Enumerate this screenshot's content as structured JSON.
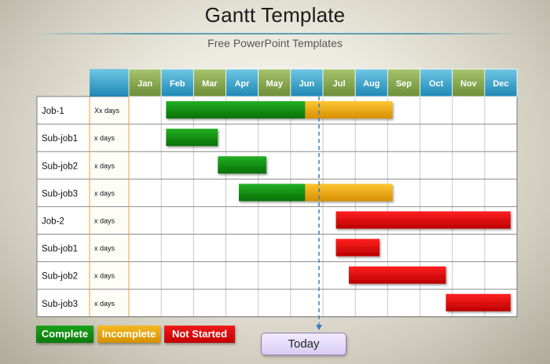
{
  "header": {
    "title": "Gantt Template",
    "subtitle": "Free PowerPoint Templates"
  },
  "legend": {
    "complete": "Complete",
    "incomplete": "Incomplete",
    "not_started": "Not Started"
  },
  "today_label": "Today",
  "colors": {
    "complete": "#0e8a0e",
    "incomplete": "#f0ac0a",
    "not_started": "#e00000",
    "month_green": "#7f9f4a",
    "month_blue": "#3aa0c4"
  },
  "chart_data": {
    "type": "gantt",
    "months": [
      "Jan",
      "Feb",
      "Mar",
      "Apr",
      "May",
      "Jun",
      "Jul",
      "Aug",
      "Sep",
      "Oct",
      "Nov",
      "Dec"
    ],
    "today": 6.0,
    "rows": [
      {
        "name": "Job-1",
        "duration": "Xx days",
        "bars": [
          {
            "start": 1.15,
            "end": 5.45,
            "status": "complete"
          },
          {
            "start": 5.45,
            "end": 8.15,
            "status": "incomplete"
          }
        ]
      },
      {
        "name": "Sub-job1",
        "duration": "x days",
        "bars": [
          {
            "start": 1.15,
            "end": 2.75,
            "status": "complete"
          }
        ]
      },
      {
        "name": "Sub-job2",
        "duration": "x days",
        "bars": [
          {
            "start": 2.75,
            "end": 4.25,
            "status": "complete"
          }
        ]
      },
      {
        "name": "Sub-job3",
        "duration": "x days",
        "bars": [
          {
            "start": 3.4,
            "end": 5.45,
            "status": "complete"
          },
          {
            "start": 5.45,
            "end": 8.15,
            "status": "incomplete"
          }
        ]
      },
      {
        "name": "Job-2",
        "duration": "x days",
        "bars": [
          {
            "start": 6.4,
            "end": 11.8,
            "status": "not_started"
          }
        ]
      },
      {
        "name": "Sub-job1",
        "duration": "x days",
        "bars": [
          {
            "start": 6.4,
            "end": 7.75,
            "status": "not_started"
          }
        ]
      },
      {
        "name": "Sub-job2",
        "duration": "x days",
        "bars": [
          {
            "start": 6.8,
            "end": 9.8,
            "status": "not_started"
          }
        ]
      },
      {
        "name": "Sub-job3",
        "duration": "x days",
        "bars": [
          {
            "start": 9.8,
            "end": 11.8,
            "status": "not_started"
          }
        ]
      }
    ]
  }
}
